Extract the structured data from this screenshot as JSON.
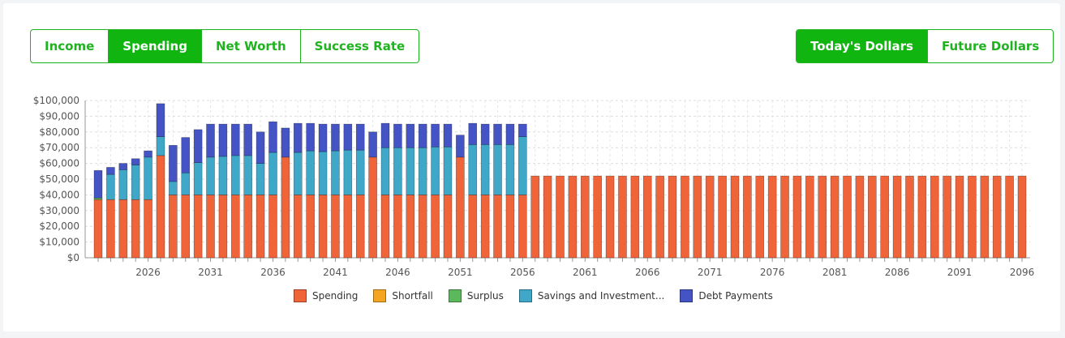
{
  "toggles": {
    "view": [
      {
        "label": "Income",
        "active": false
      },
      {
        "label": "Spending",
        "active": true
      },
      {
        "label": "Net Worth",
        "active": false
      },
      {
        "label": "Success Rate",
        "active": false
      }
    ],
    "money": [
      {
        "label": "Today's Dollars",
        "active": true
      },
      {
        "label": "Future Dollars",
        "active": false
      }
    ]
  },
  "colors": {
    "accent": "#10b510",
    "spending": "#f0643a",
    "shortfall": "#f4a623",
    "surplus": "#5cb85c",
    "savings": "#3fa8c8",
    "debt": "#4454c4"
  },
  "chart_data": {
    "type": "bar",
    "stacked": true,
    "x_start": 2022,
    "x_end": 2096,
    "x_tick_labels": [
      "2026",
      "2031",
      "2036",
      "2041",
      "2046",
      "2051",
      "2056",
      "2061",
      "2066",
      "2071",
      "2076",
      "2081",
      "2086",
      "2091",
      "2096"
    ],
    "y_tick_labels": [
      "$0",
      "$10,000",
      "$20,000",
      "$30,000",
      "$40,000",
      "$50,000",
      "$60,000",
      "$70,000",
      "$80,000",
      "$90,000",
      "$100,000"
    ],
    "ylim": [
      0,
      100000
    ],
    "grid": true,
    "legend_position": "bottom",
    "series": [
      {
        "name": "Spending",
        "color": "#f0643a",
        "values": [
          37000,
          37000,
          37000,
          37000,
          37000,
          65000,
          40000,
          40000,
          40000,
          40000,
          40000,
          40000,
          40000,
          40000,
          40000,
          64000,
          40000,
          40000,
          40000,
          40000,
          40000,
          40000,
          64000,
          40000,
          40000,
          40000,
          40000,
          40000,
          40000,
          64000,
          40000,
          40000,
          40000,
          40000,
          40000,
          52000,
          52000,
          52000,
          52000,
          52000,
          52000,
          52000,
          52000,
          52000,
          52000,
          52000,
          52000,
          52000,
          52000,
          52000,
          52000,
          52000,
          52000,
          52000,
          52000,
          52000,
          52000,
          52000,
          52000,
          52000,
          52000,
          52000,
          52000,
          52000,
          52000,
          52000,
          52000,
          52000,
          52000,
          52000,
          52000,
          52000,
          52000,
          52000,
          52000
        ]
      },
      {
        "name": "Shortfall",
        "color": "#f4a623",
        "values": [
          0,
          0,
          0,
          0,
          0,
          0,
          0,
          0,
          0,
          0,
          0,
          0,
          0,
          0,
          0,
          0,
          0,
          0,
          0,
          0,
          0,
          0,
          0,
          0,
          0,
          0,
          0,
          0,
          0,
          0,
          0,
          0,
          0,
          0,
          0,
          0,
          0,
          0,
          0,
          0,
          0,
          0,
          0,
          0,
          0,
          0,
          0,
          0,
          0,
          0,
          0,
          0,
          0,
          0,
          0,
          0,
          0,
          0,
          0,
          0,
          0,
          0,
          0,
          0,
          0,
          0,
          0,
          0,
          0,
          0,
          0,
          0,
          0,
          0,
          0
        ]
      },
      {
        "name": "Surplus",
        "color": "#5cb85c",
        "values": [
          1000,
          0,
          0,
          0,
          0,
          0,
          0,
          0,
          0,
          0,
          0,
          0,
          0,
          0,
          0,
          0,
          0,
          0,
          0,
          0,
          0,
          0,
          0,
          0,
          0,
          0,
          0,
          0,
          0,
          0,
          0,
          0,
          0,
          0,
          0,
          0,
          0,
          0,
          0,
          0,
          0,
          0,
          0,
          0,
          0,
          0,
          0,
          0,
          0,
          0,
          0,
          0,
          0,
          0,
          0,
          0,
          0,
          0,
          0,
          0,
          0,
          0,
          0,
          0,
          0,
          0,
          0,
          0,
          0,
          0,
          0,
          0,
          0,
          0,
          0
        ]
      },
      {
        "name": "Savings and Investment...",
        "color": "#3fa8c8",
        "values": [
          0,
          16000,
          19000,
          22000,
          27000,
          12000,
          8500,
          14000,
          20500,
          24000,
          24500,
          25000,
          25000,
          20000,
          27000,
          0,
          27000,
          28000,
          27500,
          28000,
          28500,
          28500,
          0,
          30000,
          30000,
          30000,
          30000,
          30500,
          30500,
          0,
          32000,
          32000,
          32000,
          32000,
          37000,
          0,
          0,
          0,
          0,
          0,
          0,
          0,
          0,
          0,
          0,
          0,
          0,
          0,
          0,
          0,
          0,
          0,
          0,
          0,
          0,
          0,
          0,
          0,
          0,
          0,
          0,
          0,
          0,
          0,
          0,
          0,
          0,
          0,
          0,
          0,
          0,
          0,
          0,
          0,
          0
        ]
      },
      {
        "name": "Debt Payments",
        "color": "#4454c4",
        "values": [
          17500,
          4500,
          4000,
          4000,
          4000,
          21000,
          23000,
          22500,
          21000,
          21000,
          20500,
          20000,
          20000,
          20000,
          19500,
          18500,
          18500,
          17500,
          17500,
          17000,
          16500,
          16500,
          16000,
          15500,
          15000,
          15000,
          15000,
          14500,
          14500,
          14000,
          13500,
          13000,
          13000,
          13000,
          8000,
          0,
          0,
          0,
          0,
          0,
          0,
          0,
          0,
          0,
          0,
          0,
          0,
          0,
          0,
          0,
          0,
          0,
          0,
          0,
          0,
          0,
          0,
          0,
          0,
          0,
          0,
          0,
          0,
          0,
          0,
          0,
          0,
          0,
          0,
          0,
          0,
          0,
          0,
          0,
          0
        ]
      }
    ]
  }
}
